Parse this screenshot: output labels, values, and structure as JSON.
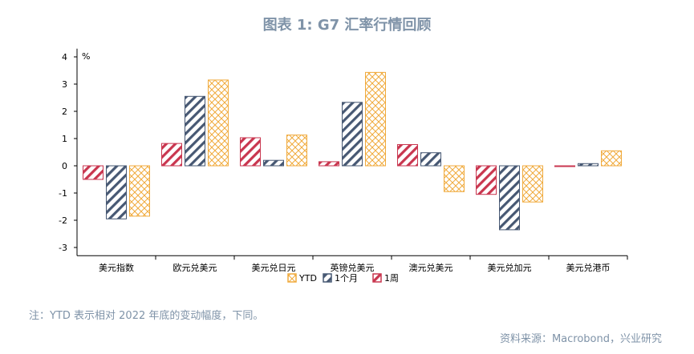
{
  "header": {
    "title": "图表 1:  G7 汇率行情回顾"
  },
  "footer": {
    "note": "注：YTD 表示相对 2022 年底的变动幅度，下同。",
    "source": "资料来源：Macrobond，兴业研究"
  },
  "chart_data": {
    "type": "bar",
    "unit_label": "%",
    "categories": [
      "美元指数",
      "欧元兑美元",
      "美元兑日元",
      "英镑兑美元",
      "澳元兑美元",
      "美元兑加元",
      "美元兑港币"
    ],
    "series": [
      {
        "name": "1周",
        "color": "#c9364f",
        "values": [
          -0.5,
          0.82,
          1.03,
          0.15,
          0.78,
          -1.05,
          -0.02
        ]
      },
      {
        "name": "1个月",
        "color": "#475873",
        "values": [
          -1.95,
          2.55,
          0.2,
          2.33,
          0.48,
          -2.35,
          0.08
        ]
      },
      {
        "name": "YTD",
        "color": "#f0aa3c",
        "values": [
          -1.85,
          3.15,
          1.13,
          3.43,
          -0.95,
          -1.33,
          0.55
        ]
      }
    ],
    "legend_order": [
      "YTD",
      "1个月",
      "1周"
    ],
    "legend_position": "bottom",
    "yticks": [
      4,
      3,
      2,
      1,
      0,
      -1,
      -2,
      -3
    ],
    "ylim": [
      -3.3,
      4.3
    ],
    "grid": false
  }
}
